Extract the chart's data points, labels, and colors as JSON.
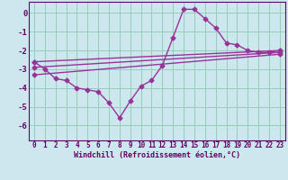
{
  "xlabel": "Windchill (Refroidissement éolien,°C)",
  "background_color": "#cce8ee",
  "grid_color": "#99ccbb",
  "line_color": "#993399",
  "xlim": [
    -0.5,
    23.5
  ],
  "ylim": [
    -6.8,
    0.6
  ],
  "yticks": [
    0,
    -1,
    -2,
    -3,
    -4,
    -5,
    -6
  ],
  "xticks": [
    0,
    1,
    2,
    3,
    4,
    5,
    6,
    7,
    8,
    9,
    10,
    11,
    12,
    13,
    14,
    15,
    16,
    17,
    18,
    19,
    20,
    21,
    22,
    23
  ],
  "series": [
    {
      "x": [
        0,
        1,
        2,
        3,
        4,
        5,
        6,
        7,
        8,
        9,
        10,
        11,
        12,
        13,
        14,
        15,
        16,
        17,
        18,
        19,
        20,
        21,
        22,
        23
      ],
      "y": [
        -2.6,
        -3.0,
        -3.5,
        -3.6,
        -4.0,
        -4.1,
        -4.2,
        -4.8,
        -5.6,
        -4.7,
        -3.9,
        -3.6,
        -2.8,
        -1.3,
        0.2,
        0.2,
        -0.3,
        -0.8,
        -1.6,
        -1.7,
        -2.0,
        -2.1,
        -2.1,
        -2.0
      ]
    },
    {
      "x": [
        0,
        23
      ],
      "y": [
        -2.6,
        -2.0
      ]
    },
    {
      "x": [
        0,
        23
      ],
      "y": [
        -2.9,
        -2.1
      ]
    },
    {
      "x": [
        0,
        23
      ],
      "y": [
        -3.3,
        -2.2
      ]
    }
  ],
  "marker": "D",
  "markersize": 2.5,
  "linewidth": 1.0,
  "tick_color": "#660066",
  "xlabel_fontsize": 6.0,
  "ytick_fontsize": 6.5,
  "xtick_fontsize": 5.5
}
